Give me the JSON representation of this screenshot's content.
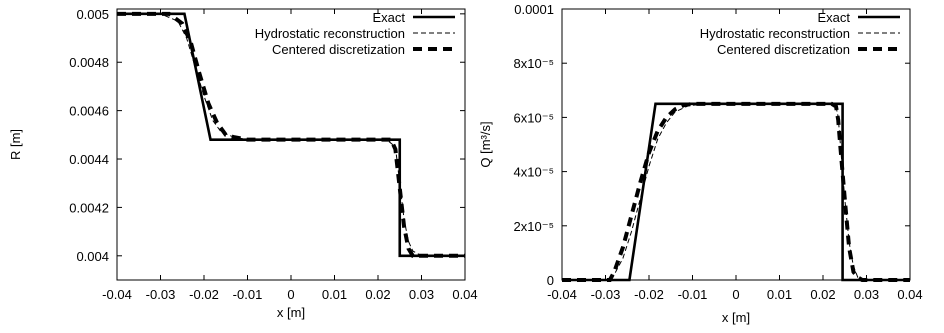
{
  "chart_data": [
    {
      "type": "line",
      "xlabel": "x [m]",
      "ylabel": "R [m]",
      "xlim": [
        -0.04,
        0.04
      ],
      "ylim": [
        0.0039,
        0.00502
      ],
      "x_ticks": [
        -0.04,
        -0.03,
        -0.02,
        -0.01,
        0,
        0.01,
        0.02,
        0.03,
        0.04
      ],
      "x_tick_labels": [
        "-0.04",
        "-0.03",
        "-0.02",
        "-0.01",
        "0",
        "0.01",
        "0.02",
        "0.03",
        "0.04"
      ],
      "y_ticks": [
        0.004,
        0.0042,
        0.0044,
        0.0046,
        0.0048,
        0.005
      ],
      "y_tick_labels": [
        "0.004",
        "0.0042",
        "0.0044",
        "0.0046",
        "0.0048",
        "0.005"
      ],
      "legend_position": "top-right",
      "series": [
        {
          "name": "Exact",
          "style": "solid",
          "x": [
            -0.04,
            -0.0245,
            -0.0185,
            0.025,
            0.025,
            0.04
          ],
          "y": [
            0.005,
            0.005,
            0.00448,
            0.00448,
            0.004,
            0.004
          ]
        },
        {
          "name": "Hydrostatic reconstruction",
          "style": "thin-dash",
          "x": [
            -0.04,
            -0.03,
            -0.026,
            -0.024,
            -0.022,
            -0.02,
            -0.018,
            -0.016,
            -0.013,
            -0.01,
            0.0,
            0.01,
            0.022,
            0.024,
            0.025,
            0.026,
            0.027,
            0.028,
            0.03,
            0.04
          ],
          "y": [
            0.005,
            0.005,
            0.00497,
            0.0049,
            0.00478,
            0.00466,
            0.00456,
            0.00451,
            0.00449,
            0.00448,
            0.00448,
            0.00448,
            0.00448,
            0.00445,
            0.0043,
            0.00415,
            0.00406,
            0.00402,
            0.004,
            0.004
          ]
        },
        {
          "name": "Centered discretization",
          "style": "thick-dash",
          "x": [
            -0.04,
            -0.028,
            -0.025,
            -0.023,
            -0.021,
            -0.019,
            -0.017,
            -0.015,
            -0.013,
            -0.01,
            0.0,
            0.01,
            0.023,
            0.024,
            0.025,
            0.026,
            0.027,
            0.028,
            0.03,
            0.04
          ],
          "y": [
            0.005,
            0.005,
            0.00496,
            0.00488,
            0.00475,
            0.00463,
            0.00455,
            0.0045,
            0.00449,
            0.00448,
            0.00448,
            0.00448,
            0.00448,
            0.00444,
            0.00428,
            0.00412,
            0.00403,
            0.004,
            0.004,
            0.004
          ]
        }
      ]
    },
    {
      "type": "line",
      "xlabel": "x [m]",
      "ylabel": "Q [m³/s]",
      "xlim": [
        -0.04,
        0.04
      ],
      "ylim": [
        0,
        0.0001
      ],
      "x_ticks": [
        -0.04,
        -0.03,
        -0.02,
        -0.01,
        0,
        0.01,
        0.02,
        0.03,
        0.04
      ],
      "x_tick_labels": [
        "-0.04",
        "-0.03",
        "-0.02",
        "-0.01",
        "0",
        "0.01",
        "0.02",
        "0.03",
        "0.04"
      ],
      "y_ticks": [
        0,
        2e-05,
        4e-05,
        6e-05,
        8e-05,
        0.0001
      ],
      "y_tick_labels": [
        "0",
        "2x10⁻⁵",
        "4x10⁻⁵",
        "6x10⁻⁵",
        "8x10⁻⁵",
        "0.0001"
      ],
      "legend_position": "top-right",
      "series": [
        {
          "name": "Exact",
          "style": "solid",
          "x": [
            -0.04,
            -0.0245,
            -0.0185,
            0.0245,
            0.0245,
            0.04
          ],
          "y": [
            0,
            0,
            6.5e-05,
            6.5e-05,
            0,
            0
          ]
        },
        {
          "name": "Hydrostatic reconstruction",
          "style": "thin-dash",
          "x": [
            -0.04,
            -0.03,
            -0.028,
            -0.026,
            -0.024,
            -0.022,
            -0.02,
            -0.018,
            -0.016,
            -0.014,
            -0.011,
            -0.008,
            0.0,
            0.01,
            0.022,
            0.023,
            0.0235,
            0.024,
            0.025,
            0.026,
            0.027,
            0.028,
            0.03,
            0.04
          ],
          "y": [
            0,
            0,
            2e-06,
            8e-06,
            1.8e-05,
            3e-05,
            4.2e-05,
            5.2e-05,
            5.8e-05,
            6.2e-05,
            6.43e-05,
            6.48e-05,
            6.5e-05,
            6.5e-05,
            6.5e-05,
            6.4e-05,
            6e-05,
            5e-05,
            3e-05,
            1.4e-05,
            5e-06,
            1e-06,
            0,
            0
          ]
        },
        {
          "name": "Centered discretization",
          "style": "thick-dash",
          "x": [
            -0.04,
            -0.029,
            -0.028,
            -0.026,
            -0.024,
            -0.022,
            -0.02,
            -0.018,
            -0.016,
            -0.014,
            -0.012,
            -0.01,
            0.0,
            0.01,
            0.022,
            0.023,
            0.0235,
            0.024,
            0.025,
            0.026,
            0.027,
            0.028,
            0.029,
            0.04
          ],
          "y": [
            0,
            0,
            3e-06,
            1.2e-05,
            2.4e-05,
            3.6e-05,
            4.7e-05,
            5.5e-05,
            6e-05,
            6.3e-05,
            6.45e-05,
            6.5e-05,
            6.5e-05,
            6.5e-05,
            6.5e-05,
            6.4e-05,
            5.9e-05,
            4.9e-05,
            3e-05,
            1.2e-05,
            3e-06,
            1e-06,
            0,
            0
          ]
        }
      ]
    }
  ]
}
